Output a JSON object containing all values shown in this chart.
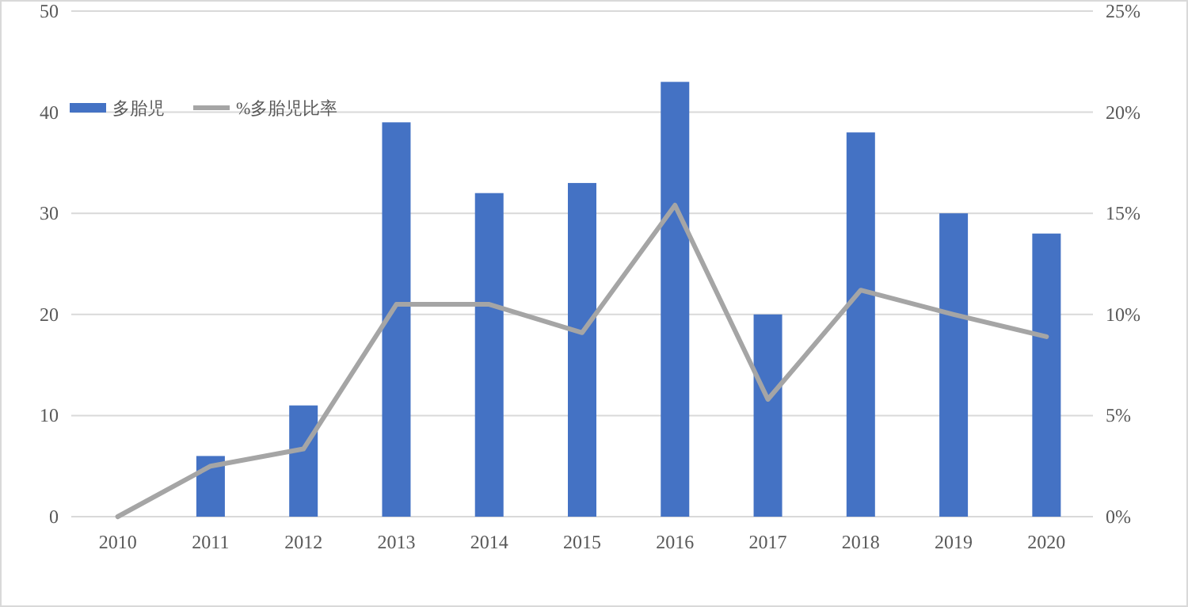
{
  "chart_data": {
    "type": "bar",
    "categories": [
      "2010",
      "2011",
      "2012",
      "2013",
      "2014",
      "2015",
      "2016",
      "2017",
      "2018",
      "2019",
      "2020"
    ],
    "series": [
      {
        "name": "多胎児",
        "color": "#4472c4",
        "values": [
          0,
          6,
          11,
          39,
          32,
          33,
          43,
          20,
          38,
          30,
          28
        ]
      },
      {
        "name": "%多胎児比率",
        "type": "line",
        "axis": "y2",
        "color": "#a5a5a5",
        "values": [
          0,
          2.5,
          3.35,
          10.5,
          10.5,
          9.1,
          15.4,
          5.8,
          11.2,
          10.0,
          8.9
        ]
      }
    ],
    "ylim": [
      0,
      50
    ],
    "yticks": [
      0,
      10,
      20,
      30,
      40,
      50
    ],
    "y2lim": [
      0,
      25
    ],
    "y2ticks": [
      {
        "value": 0,
        "label": "0%"
      },
      {
        "value": 5,
        "label": "5%"
      },
      {
        "value": 10,
        "label": "10%"
      },
      {
        "value": 15,
        "label": "15%"
      },
      {
        "value": 20,
        "label": "20%"
      },
      {
        "value": 25,
        "label": "25%"
      }
    ],
    "grid": "y",
    "legend": "top left",
    "marker": "none",
    "line_style": "solid"
  }
}
